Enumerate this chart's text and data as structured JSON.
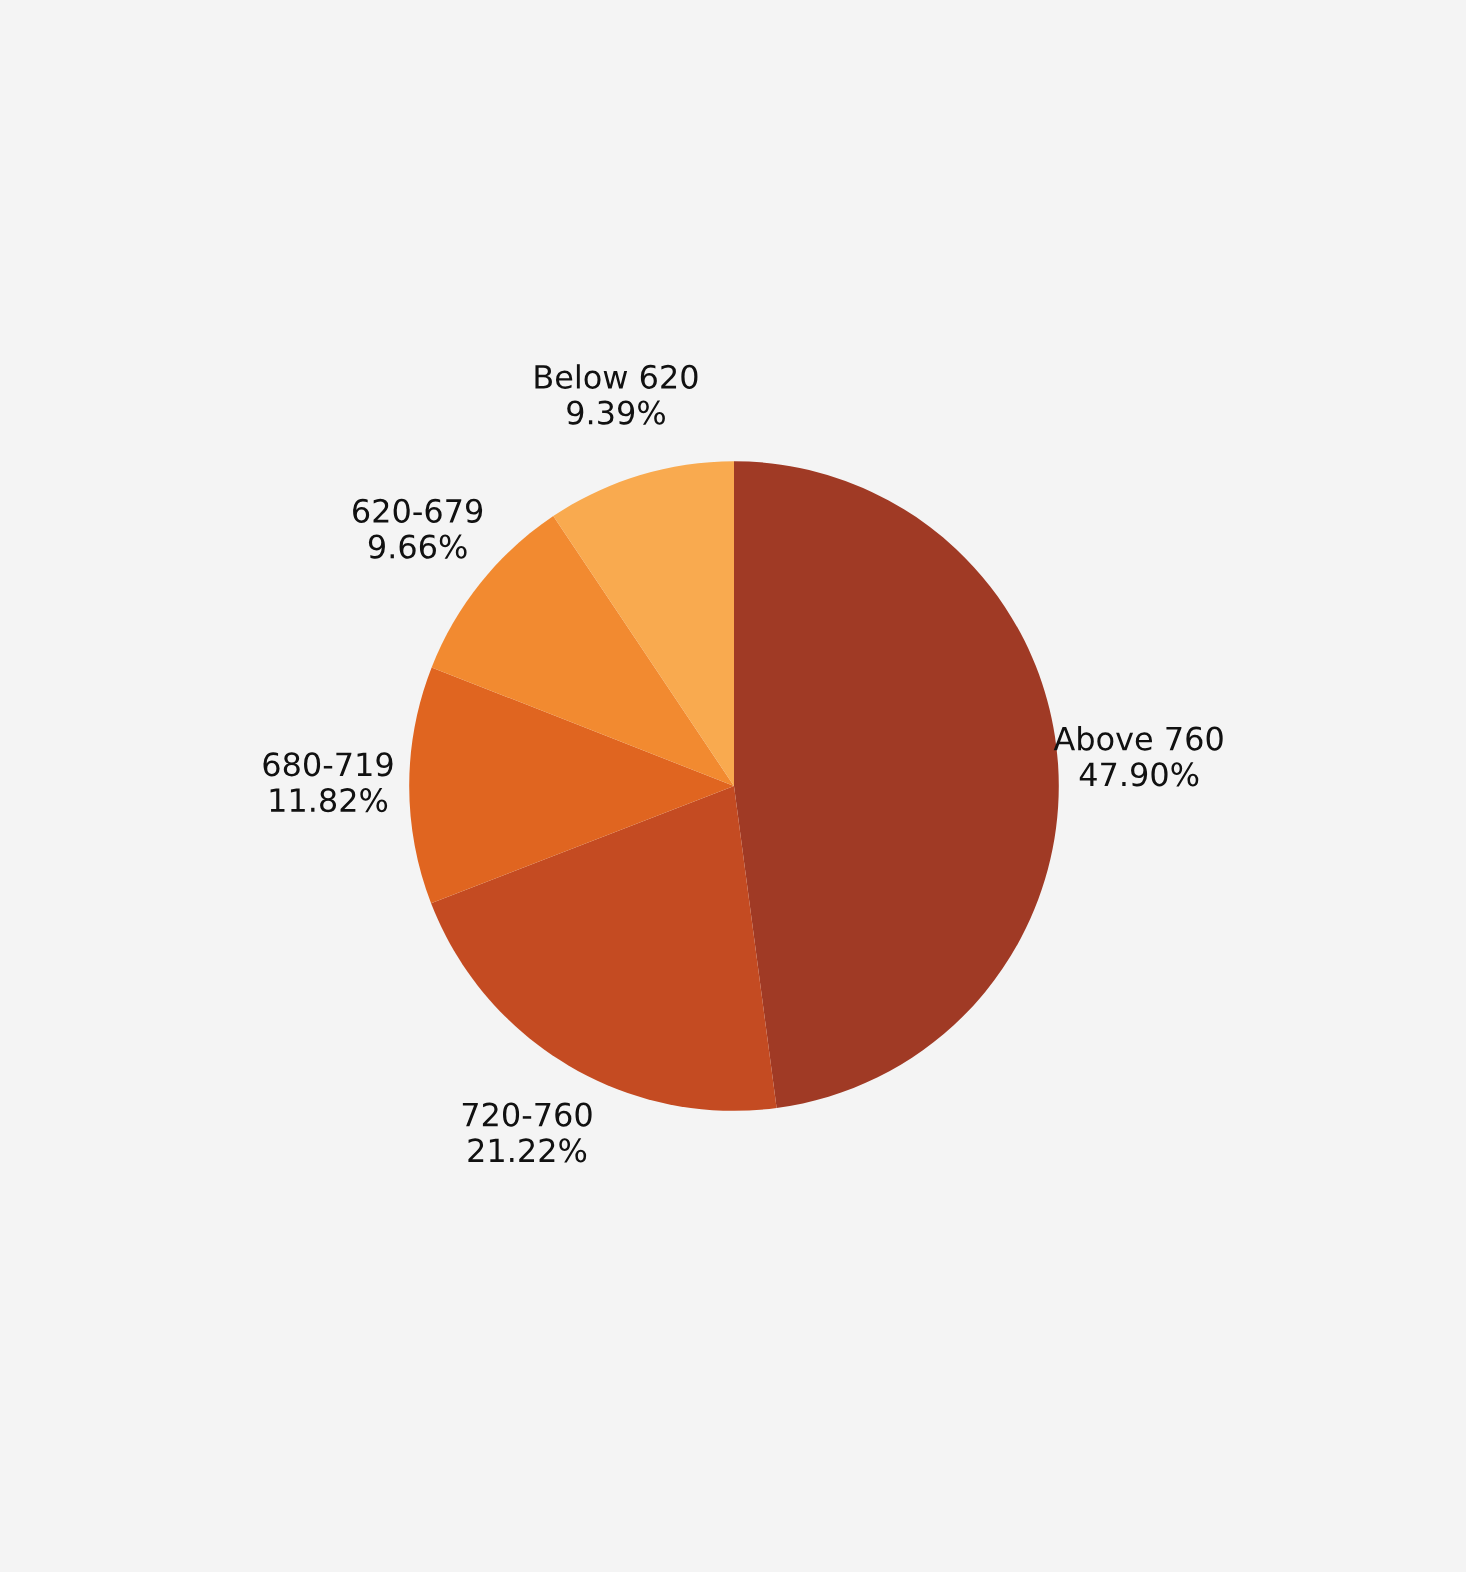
{
  "chart_data": {
    "type": "pie",
    "categories": [
      "Above 760",
      "720-760",
      "680-719",
      "620-679",
      "Below 620"
    ],
    "values": [
      47.9,
      21.22,
      11.82,
      9.66,
      9.39
    ],
    "value_labels": [
      "47.90%",
      "21.22%",
      "11.82%",
      "9.66%",
      "9.39%"
    ],
    "colors": [
      "#a03a25",
      "#c44b22",
      "#e06520",
      "#f28a30",
      "#f9aa4f"
    ],
    "legend": false
  }
}
